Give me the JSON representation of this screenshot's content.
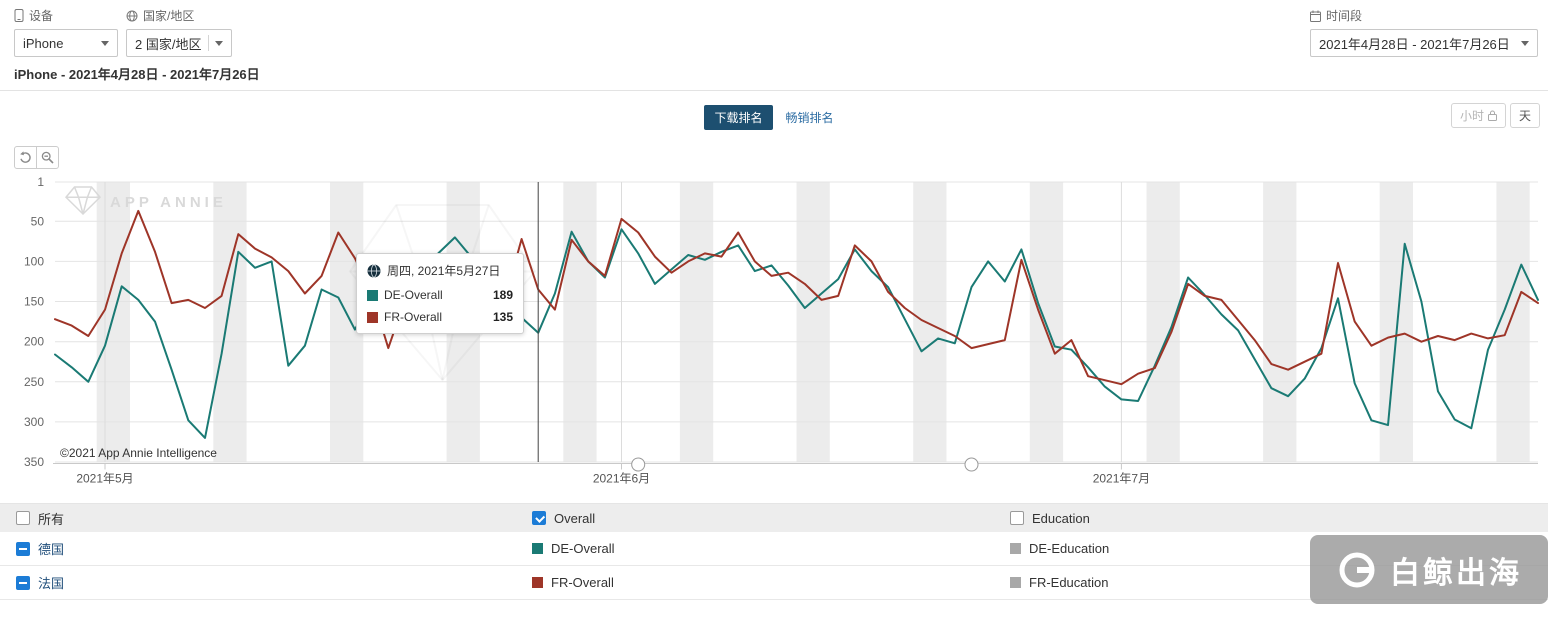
{
  "toolbar": {
    "device": {
      "label": "设备",
      "value": "iPhone"
    },
    "country": {
      "label": "国家/地区",
      "value": "2 国家/地区"
    },
    "period": {
      "label": "时间段",
      "value": "2021年4月28日 - 2021年7月26日"
    }
  },
  "subtitle": "iPhone - 2021年4月28日 - 2021年7月26日",
  "tabs": {
    "download": "下载排名",
    "grossing": "畅销排名"
  },
  "granularity": {
    "hour": "小时",
    "day": "天"
  },
  "watermark": "APP ANNIE",
  "copyright": "©2021 App Annie Intelligence",
  "brand_watermark": "白鲸出海",
  "colors": {
    "de_overall": "#1a7a74",
    "fr_overall": "#9e3528",
    "education_disabled": "#a8a8a8",
    "active_tab_bg": "#1d4f70",
    "link_blue": "#2d6da3",
    "checkbox_blue": "#1c7cd6"
  },
  "tooltip": {
    "title": "周四, 2021年5月27日",
    "rows": [
      {
        "name": "DE-Overall",
        "value": "189",
        "color": "#1a7a74"
      },
      {
        "name": "FR-Overall",
        "value": "135",
        "color": "#9e3528"
      }
    ]
  },
  "chart_data": {
    "type": "line",
    "x_axis": {
      "start_date": "2021-04-28",
      "end_date": "2021-07-26",
      "frequency": "daily",
      "tick_labels": [
        "2021年5月",
        "2021年6月",
        "2021年7月"
      ],
      "tick_day_offsets": [
        3,
        34,
        64
      ]
    },
    "y_axis": {
      "label": "rank",
      "inverted": true,
      "min": 1,
      "max": 350,
      "ticks": [
        1,
        50,
        100,
        150,
        200,
        250,
        300,
        350
      ]
    },
    "weekend_shading": {
      "first_saturday_offset": 3,
      "period_days": 7
    },
    "crosshair_day_offset": 29,
    "handle_day_offsets": [
      35,
      55
    ],
    "series": [
      {
        "name": "DE-Overall",
        "color": "#1a7a74",
        "values": [
          216,
          232,
          250,
          205,
          131,
          148,
          175,
          235,
          298,
          320,
          215,
          88,
          108,
          100,
          230,
          205,
          135,
          145,
          185,
          147,
          122,
          120,
          113,
          90,
          70,
          95,
          120,
          150,
          170,
          189,
          140,
          63,
          100,
          120,
          60,
          90,
          128,
          110,
          92,
          98,
          88,
          80,
          112,
          105,
          130,
          158,
          140,
          122,
          85,
          112,
          132,
          172,
          212,
          196,
          202,
          132,
          100,
          125,
          85,
          152,
          206,
          210,
          232,
          256,
          272,
          274,
          230,
          182,
          120,
          142,
          166,
          186,
          222,
          258,
          268,
          246,
          208,
          146,
          252,
          298,
          304,
          78,
          150,
          262,
          297,
          308,
          210,
          160,
          104,
          148
        ]
      },
      {
        "name": "FR-Overall",
        "color": "#9e3528",
        "values": [
          172,
          180,
          193,
          160,
          90,
          37,
          88,
          152,
          148,
          158,
          143,
          66,
          84,
          95,
          112,
          140,
          118,
          64,
          96,
          140,
          208,
          148,
          104,
          97,
          95,
          110,
          133,
          148,
          72,
          135,
          160,
          73,
          100,
          118,
          47,
          64,
          94,
          114,
          100,
          90,
          94,
          64,
          100,
          118,
          114,
          128,
          148,
          143,
          80,
          100,
          138,
          158,
          173,
          183,
          193,
          208,
          203,
          198,
          98,
          160,
          215,
          198,
          243,
          248,
          253,
          240,
          233,
          188,
          128,
          143,
          148,
          173,
          198,
          228,
          235,
          225,
          215,
          102,
          175,
          205,
          195,
          190,
          200,
          193,
          198,
          190,
          196,
          192,
          138,
          152
        ]
      }
    ]
  },
  "legend": {
    "header": [
      {
        "label": "所有",
        "state": "unchecked"
      },
      {
        "label": "Overall",
        "state": "checked"
      },
      {
        "label": "Education",
        "state": "unchecked"
      }
    ],
    "rows": [
      {
        "country": "德国",
        "series": [
          {
            "name": "DE-Overall",
            "color": "#1a7a74"
          },
          {
            "name": "DE-Education",
            "color": "#a8a8a8"
          }
        ]
      },
      {
        "country": "法国",
        "series": [
          {
            "name": "FR-Overall",
            "color": "#9e3528"
          },
          {
            "name": "FR-Education",
            "color": "#a8a8a8"
          }
        ]
      }
    ]
  }
}
